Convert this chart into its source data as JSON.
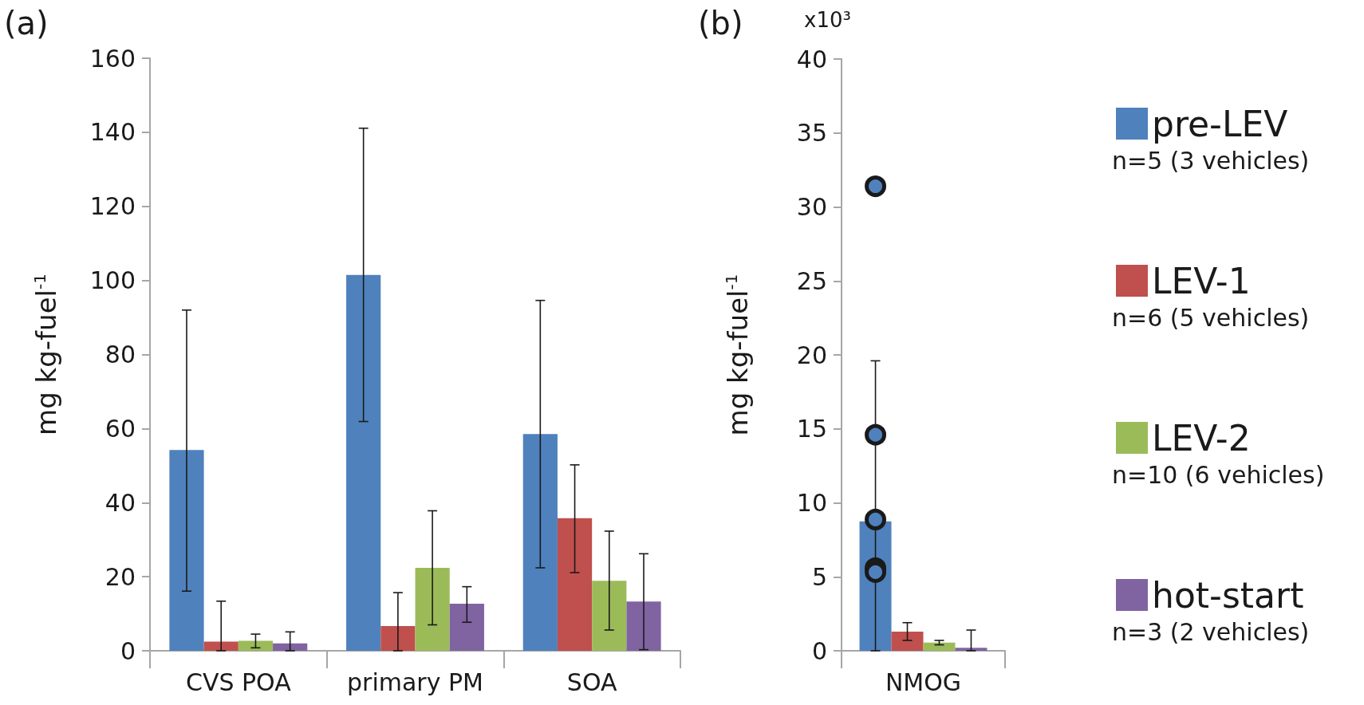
{
  "chart_data": [
    {
      "type": "bar",
      "title": "(a)",
      "ylabel": "mg kg-fuel$^{-1}$",
      "categories": [
        "CVS POA",
        "primary PM",
        "SOA"
      ],
      "ylim": [
        0,
        160
      ],
      "yticks": [
        0,
        20,
        40,
        60,
        80,
        100,
        120,
        140,
        160
      ],
      "grid": false,
      "series": [
        {
          "color": "#4f81bd",
          "values": [
            54.2,
            101.5,
            58.5
          ],
          "errors": [
            [
              16.1,
              92.0
            ],
            [
              61.9,
              141.1
            ],
            [
              22.4,
              94.6
            ]
          ]
        },
        {
          "color": "#c0504d",
          "values": [
            2.5,
            6.7,
            35.8
          ],
          "errors": [
            [
              0,
              13.4
            ],
            [
              0,
              15.7
            ],
            [
              21.1,
              50.2
            ]
          ]
        },
        {
          "color": "#9bbb59",
          "values": [
            2.7,
            22.4,
            18.9
          ],
          "errors": [
            [
              0.8,
              4.5
            ],
            [
              7.0,
              37.8
            ],
            [
              5.6,
              32.3
            ]
          ]
        },
        {
          "color": "#8064a2",
          "values": [
            2.0,
            12.7,
            13.3
          ],
          "errors": [
            [
              0,
              5.1
            ],
            [
              7.7,
              17.3
            ],
            [
              0.3,
              26.2
            ]
          ]
        }
      ]
    },
    {
      "type": "bar",
      "title": "(b)",
      "ylabel": "mg kg-fuel$^{-1}$",
      "categories": [
        "NMOG"
      ],
      "ylim": [
        0,
        40
      ],
      "yticks": [
        0,
        5,
        10,
        15,
        20,
        25,
        30,
        35,
        40
      ],
      "grid": false,
      "legend": "right",
      "annotations": [
        "x10³",
        "n=5 (3 vehicles)",
        "n=6 (5 vehicles)",
        "n=10 (6 vehicles)",
        "n=3 (2 vehicles)"
      ],
      "series": [
        {
          "name": "pre-LEV",
          "color": "#4f81bd",
          "values": [
            8.75
          ],
          "errors": [
            [
              0,
              19.6
            ]
          ]
        },
        {
          "name": "LEV-1",
          "color": "#c0504d",
          "values": [
            1.3
          ],
          "errors": [
            [
              0.7,
              1.9
            ]
          ]
        },
        {
          "name": "LEV-2",
          "color": "#9bbb59",
          "values": [
            0.55
          ],
          "errors": [
            [
              0.4,
              0.7
            ]
          ]
        },
        {
          "name": "hot-start",
          "color": "#8064a2",
          "values": [
            0.2
          ],
          "errors": [
            [
              0,
              1.4
            ]
          ]
        },
        {
          "type": "scatter",
          "color": "#4f81bd",
          "marker": "circle",
          "x": [
            "NMOG",
            "NMOG",
            "NMOG",
            "NMOG",
            "NMOG"
          ],
          "values": [
            31.4,
            14.6,
            8.87,
            5.58,
            5.32
          ]
        }
      ]
    }
  ]
}
